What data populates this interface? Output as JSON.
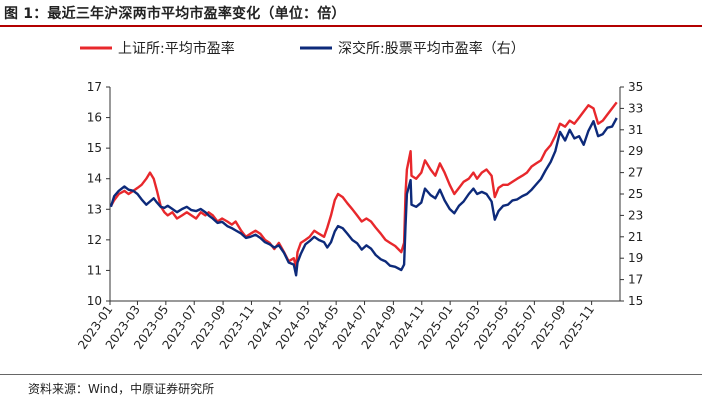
{
  "header": {
    "title": "图 1：最近三年沪深两市平均市盈率变化（单位：倍）",
    "source": "资料来源：Wind，中原证券研究所"
  },
  "chart_data": {
    "type": "line",
    "title": "图 1：最近三年沪深两市平均市盈率变化（单位：倍）",
    "x_tick_labels": [
      "2023-01",
      "2023-03",
      "2023-05",
      "2023-07",
      "2023-09",
      "2023-11",
      "2024-01",
      "2024-03",
      "2024-05",
      "2024-07",
      "2024-09",
      "2024-11",
      "2025-01",
      "2025-03",
      "2025-05",
      "2025-07",
      "2025-09",
      "2025-11"
    ],
    "y_left": {
      "min": 10,
      "max": 17,
      "ticks": [
        10,
        11,
        12,
        13,
        14,
        15,
        16,
        17
      ]
    },
    "y_right": {
      "min": 15,
      "max": 35,
      "ticks": [
        15,
        17,
        19,
        21,
        23,
        25,
        27,
        29,
        31,
        33,
        35
      ]
    },
    "grid": false,
    "legend_position": "top",
    "series": [
      {
        "name": "上证所:平均市盈率",
        "axis": "left",
        "color": "#e8282c",
        "points": [
          [
            "2023-01-03",
            13.1
          ],
          [
            "2023-01-10",
            13.3
          ],
          [
            "2023-01-20",
            13.5
          ],
          [
            "2023-02-01",
            13.6
          ],
          [
            "2023-02-10",
            13.5
          ],
          [
            "2023-02-20",
            13.6
          ],
          [
            "2023-03-01",
            13.7
          ],
          [
            "2023-03-10",
            13.8
          ],
          [
            "2023-03-20",
            14.0
          ],
          [
            "2023-03-28",
            14.2
          ],
          [
            "2023-04-05",
            14.0
          ],
          [
            "2023-04-12",
            13.6
          ],
          [
            "2023-04-20",
            13.1
          ],
          [
            "2023-04-28",
            12.9
          ],
          [
            "2023-05-05",
            12.8
          ],
          [
            "2023-05-15",
            12.9
          ],
          [
            "2023-05-25",
            12.7
          ],
          [
            "2023-06-05",
            12.8
          ],
          [
            "2023-06-15",
            12.9
          ],
          [
            "2023-06-25",
            12.8
          ],
          [
            "2023-07-05",
            12.7
          ],
          [
            "2023-07-15",
            12.9
          ],
          [
            "2023-07-25",
            12.8
          ],
          [
            "2023-08-01",
            12.9
          ],
          [
            "2023-08-10",
            12.8
          ],
          [
            "2023-08-20",
            12.6
          ],
          [
            "2023-08-30",
            12.7
          ],
          [
            "2023-09-10",
            12.6
          ],
          [
            "2023-09-20",
            12.5
          ],
          [
            "2023-09-28",
            12.6
          ],
          [
            "2023-10-10",
            12.3
          ],
          [
            "2023-10-20",
            12.1
          ],
          [
            "2023-10-30",
            12.2
          ],
          [
            "2023-11-10",
            12.3
          ],
          [
            "2023-11-20",
            12.2
          ],
          [
            "2023-11-30",
            12.0
          ],
          [
            "2023-12-10",
            11.9
          ],
          [
            "2023-12-20",
            11.7
          ],
          [
            "2023-12-30",
            11.9
          ],
          [
            "2024-01-10",
            11.6
          ],
          [
            "2024-01-20",
            11.3
          ],
          [
            "2024-01-31",
            11.4
          ],
          [
            "2024-02-05",
            11.1
          ],
          [
            "2024-02-08",
            11.6
          ],
          [
            "2024-02-15",
            11.9
          ],
          [
            "2024-02-25",
            12.0
          ],
          [
            "2024-03-05",
            12.1
          ],
          [
            "2024-03-15",
            12.3
          ],
          [
            "2024-03-25",
            12.2
          ],
          [
            "2024-04-05",
            12.1
          ],
          [
            "2024-04-12",
            12.4
          ],
          [
            "2024-04-20",
            12.8
          ],
          [
            "2024-04-28",
            13.3
          ],
          [
            "2024-05-05",
            13.5
          ],
          [
            "2024-05-15",
            13.4
          ],
          [
            "2024-05-25",
            13.2
          ],
          [
            "2024-06-05",
            13.0
          ],
          [
            "2024-06-15",
            12.8
          ],
          [
            "2024-06-25",
            12.6
          ],
          [
            "2024-07-05",
            12.7
          ],
          [
            "2024-07-15",
            12.6
          ],
          [
            "2024-07-25",
            12.4
          ],
          [
            "2024-08-05",
            12.2
          ],
          [
            "2024-08-15",
            12.0
          ],
          [
            "2024-08-25",
            11.9
          ],
          [
            "2024-09-05",
            11.8
          ],
          [
            "2024-09-18",
            11.6
          ],
          [
            "2024-09-24",
            11.9
          ],
          [
            "2024-09-27",
            13.5
          ],
          [
            "2024-09-30",
            14.3
          ],
          [
            "2024-10-08",
            14.9
          ],
          [
            "2024-10-10",
            14.1
          ],
          [
            "2024-10-20",
            14.0
          ],
          [
            "2024-10-31",
            14.2
          ],
          [
            "2024-11-08",
            14.6
          ],
          [
            "2024-11-20",
            14.3
          ],
          [
            "2024-11-30",
            14.1
          ],
          [
            "2024-12-10",
            14.5
          ],
          [
            "2024-12-20",
            14.2
          ],
          [
            "2024-12-31",
            13.8
          ],
          [
            "2025-01-10",
            13.5
          ],
          [
            "2025-01-20",
            13.7
          ],
          [
            "2025-01-30",
            13.9
          ],
          [
            "2025-02-10",
            14.0
          ],
          [
            "2025-02-20",
            14.2
          ],
          [
            "2025-02-28",
            14.0
          ],
          [
            "2025-03-10",
            14.2
          ],
          [
            "2025-03-20",
            14.3
          ],
          [
            "2025-03-31",
            14.1
          ],
          [
            "2025-04-07",
            13.4
          ],
          [
            "2025-04-15",
            13.7
          ],
          [
            "2025-04-25",
            13.8
          ],
          [
            "2025-05-05",
            13.8
          ],
          [
            "2025-05-15",
            13.9
          ],
          [
            "2025-05-25",
            14.0
          ],
          [
            "2025-06-05",
            14.1
          ],
          [
            "2025-06-15",
            14.2
          ],
          [
            "2025-06-25",
            14.4
          ],
          [
            "2025-07-05",
            14.5
          ],
          [
            "2025-07-15",
            14.6
          ],
          [
            "2025-07-25",
            14.9
          ],
          [
            "2025-08-05",
            15.1
          ],
          [
            "2025-08-15",
            15.4
          ],
          [
            "2025-08-25",
            15.8
          ],
          [
            "2025-09-05",
            15.7
          ],
          [
            "2025-09-15",
            15.9
          ],
          [
            "2025-09-25",
            15.8
          ],
          [
            "2025-10-05",
            16.0
          ],
          [
            "2025-10-15",
            16.2
          ],
          [
            "2025-10-25",
            16.4
          ],
          [
            "2025-11-05",
            16.3
          ],
          [
            "2025-11-15",
            15.8
          ],
          [
            "2025-11-25",
            15.9
          ],
          [
            "2025-12-05",
            16.1
          ],
          [
            "2025-12-15",
            16.3
          ],
          [
            "2025-12-25",
            16.5
          ]
        ]
      },
      {
        "name": "深交所:股票平均市盈率（右）",
        "axis": "right",
        "color": "#0d2a7a",
        "points": [
          [
            "2023-01-03",
            23.8
          ],
          [
            "2023-01-10",
            24.8
          ],
          [
            "2023-01-20",
            25.3
          ],
          [
            "2023-02-01",
            25.7
          ],
          [
            "2023-02-10",
            25.4
          ],
          [
            "2023-02-20",
            25.3
          ],
          [
            "2023-03-01",
            25.0
          ],
          [
            "2023-03-10",
            24.5
          ],
          [
            "2023-03-20",
            24.0
          ],
          [
            "2023-03-28",
            24.3
          ],
          [
            "2023-04-05",
            24.6
          ],
          [
            "2023-04-12",
            24.2
          ],
          [
            "2023-04-20",
            23.8
          ],
          [
            "2023-04-28",
            23.7
          ],
          [
            "2023-05-05",
            23.9
          ],
          [
            "2023-05-15",
            23.6
          ],
          [
            "2023-05-25",
            23.3
          ],
          [
            "2023-06-05",
            23.6
          ],
          [
            "2023-06-15",
            23.8
          ],
          [
            "2023-06-25",
            23.5
          ],
          [
            "2023-07-05",
            23.4
          ],
          [
            "2023-07-15",
            23.6
          ],
          [
            "2023-07-25",
            23.3
          ],
          [
            "2023-08-01",
            23.0
          ],
          [
            "2023-08-10",
            22.7
          ],
          [
            "2023-08-20",
            22.3
          ],
          [
            "2023-08-30",
            22.4
          ],
          [
            "2023-09-10",
            22.0
          ],
          [
            "2023-09-20",
            21.8
          ],
          [
            "2023-09-28",
            21.6
          ],
          [
            "2023-10-10",
            21.3
          ],
          [
            "2023-10-20",
            20.9
          ],
          [
            "2023-10-30",
            21.0
          ],
          [
            "2023-11-10",
            21.2
          ],
          [
            "2023-11-20",
            20.9
          ],
          [
            "2023-11-30",
            20.5
          ],
          [
            "2023-12-10",
            20.3
          ],
          [
            "2023-12-20",
            20.0
          ],
          [
            "2023-12-30",
            20.2
          ],
          [
            "2024-01-10",
            19.5
          ],
          [
            "2024-01-20",
            18.6
          ],
          [
            "2024-01-31",
            18.4
          ],
          [
            "2024-02-05",
            17.4
          ],
          [
            "2024-02-08",
            18.6
          ],
          [
            "2024-02-15",
            19.4
          ],
          [
            "2024-02-25",
            20.3
          ],
          [
            "2024-03-05",
            20.6
          ],
          [
            "2024-03-15",
            21.0
          ],
          [
            "2024-03-25",
            20.7
          ],
          [
            "2024-04-05",
            20.5
          ],
          [
            "2024-04-12",
            20.0
          ],
          [
            "2024-04-20",
            20.5
          ],
          [
            "2024-04-28",
            21.5
          ],
          [
            "2024-05-05",
            22.0
          ],
          [
            "2024-05-15",
            21.8
          ],
          [
            "2024-05-25",
            21.3
          ],
          [
            "2024-06-05",
            20.7
          ],
          [
            "2024-06-15",
            20.4
          ],
          [
            "2024-06-25",
            19.8
          ],
          [
            "2024-07-05",
            20.2
          ],
          [
            "2024-07-15",
            19.9
          ],
          [
            "2024-07-25",
            19.3
          ],
          [
            "2024-08-05",
            18.9
          ],
          [
            "2024-08-15",
            18.7
          ],
          [
            "2024-08-25",
            18.3
          ],
          [
            "2024-09-05",
            18.2
          ],
          [
            "2024-09-18",
            17.9
          ],
          [
            "2024-09-24",
            18.4
          ],
          [
            "2024-09-27",
            22.0
          ],
          [
            "2024-09-30",
            25.0
          ],
          [
            "2024-10-08",
            26.3
          ],
          [
            "2024-10-10",
            24.0
          ],
          [
            "2024-10-20",
            23.8
          ],
          [
            "2024-10-31",
            24.2
          ],
          [
            "2024-11-08",
            25.5
          ],
          [
            "2024-11-20",
            24.9
          ],
          [
            "2024-11-30",
            24.6
          ],
          [
            "2024-12-10",
            25.4
          ],
          [
            "2024-12-20",
            24.4
          ],
          [
            "2024-12-31",
            23.6
          ],
          [
            "2025-01-10",
            23.2
          ],
          [
            "2025-01-20",
            23.9
          ],
          [
            "2025-01-30",
            24.3
          ],
          [
            "2025-02-10",
            25.0
          ],
          [
            "2025-02-20",
            25.5
          ],
          [
            "2025-02-28",
            25.0
          ],
          [
            "2025-03-10",
            25.2
          ],
          [
            "2025-03-20",
            25.0
          ],
          [
            "2025-03-31",
            24.3
          ],
          [
            "2025-04-07",
            22.6
          ],
          [
            "2025-04-15",
            23.4
          ],
          [
            "2025-04-25",
            23.9
          ],
          [
            "2025-05-05",
            24.0
          ],
          [
            "2025-05-15",
            24.4
          ],
          [
            "2025-05-25",
            24.5
          ],
          [
            "2025-06-05",
            24.8
          ],
          [
            "2025-06-15",
            25.0
          ],
          [
            "2025-06-25",
            25.4
          ],
          [
            "2025-07-05",
            25.9
          ],
          [
            "2025-07-15",
            26.4
          ],
          [
            "2025-07-25",
            27.2
          ],
          [
            "2025-08-05",
            28.0
          ],
          [
            "2025-08-15",
            29.0
          ],
          [
            "2025-08-25",
            30.8
          ],
          [
            "2025-09-05",
            30.0
          ],
          [
            "2025-09-15",
            31.0
          ],
          [
            "2025-09-25",
            30.2
          ],
          [
            "2025-10-05",
            30.4
          ],
          [
            "2025-10-15",
            29.6
          ],
          [
            "2025-10-25",
            30.9
          ],
          [
            "2025-11-05",
            31.8
          ],
          [
            "2025-11-15",
            30.4
          ],
          [
            "2025-11-25",
            30.6
          ],
          [
            "2025-12-05",
            31.2
          ],
          [
            "2025-12-15",
            31.3
          ],
          [
            "2025-12-25",
            32.1
          ]
        ]
      }
    ]
  }
}
